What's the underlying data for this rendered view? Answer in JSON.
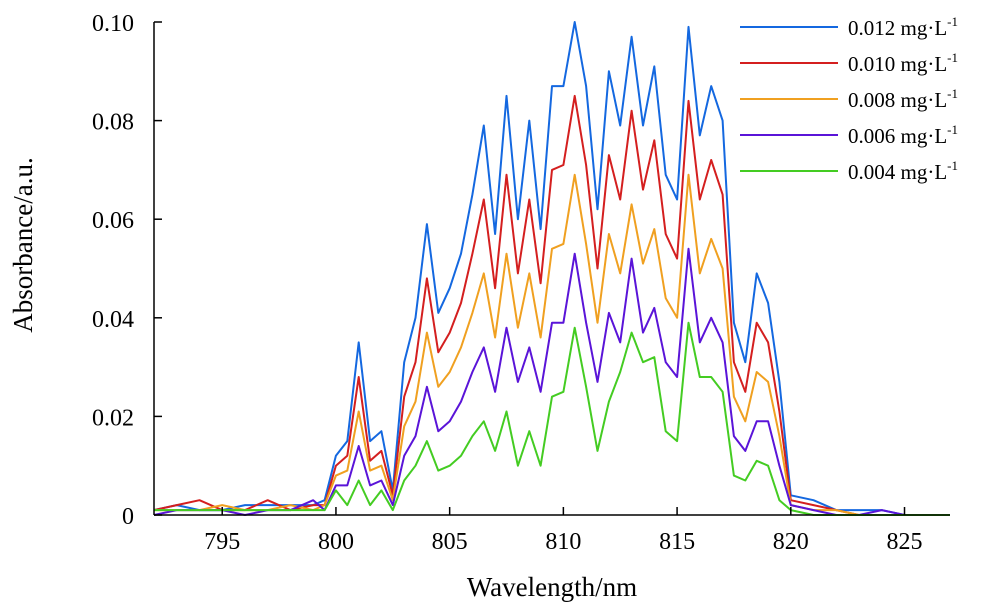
{
  "chart_data": {
    "type": "line",
    "xlabel": "Wavelength/nm",
    "ylabel": "Absorbance/a.u.",
    "xlim": [
      792,
      827
    ],
    "ylim": [
      0,
      0.1
    ],
    "xticks": [
      795,
      800,
      805,
      810,
      815,
      820,
      825
    ],
    "yticks": [
      0,
      0.02,
      0.04,
      0.06,
      0.08,
      0.1
    ],
    "ytick_labels": [
      "0",
      "0.02",
      "0.04",
      "0.06",
      "0.08",
      "0.10"
    ],
    "grid": false,
    "legend_position": "top-right",
    "x": [
      792,
      793,
      794,
      795,
      796,
      797,
      798,
      799,
      799.5,
      800,
      800.5,
      801,
      801.5,
      802,
      802.5,
      803,
      803.5,
      804,
      804.5,
      805,
      805.5,
      806,
      806.5,
      807,
      807.5,
      808,
      808.5,
      809,
      809.5,
      810,
      810.5,
      811,
      811.5,
      812,
      812.5,
      813,
      813.5,
      814,
      814.5,
      815,
      815.5,
      816,
      816.5,
      817,
      817.5,
      818,
      818.5,
      819,
      819.5,
      820,
      821,
      822,
      823,
      824,
      825,
      826,
      827
    ],
    "series": [
      {
        "name": "0.012 mg·L",
        "name_sup": "-1",
        "color": "#1468e0",
        "values": [
          0.001,
          0.002,
          0.001,
          0.001,
          0.002,
          0.002,
          0.002,
          0.002,
          0.003,
          0.012,
          0.015,
          0.035,
          0.015,
          0.017,
          0.005,
          0.031,
          0.04,
          0.059,
          0.041,
          0.046,
          0.053,
          0.065,
          0.079,
          0.057,
          0.085,
          0.06,
          0.08,
          0.058,
          0.087,
          0.087,
          0.1,
          0.087,
          0.062,
          0.09,
          0.079,
          0.097,
          0.079,
          0.091,
          0.069,
          0.064,
          0.099,
          0.077,
          0.087,
          0.08,
          0.039,
          0.031,
          0.049,
          0.043,
          0.027,
          0.004,
          0.003,
          0.001,
          0.001,
          0.001,
          0,
          0,
          0
        ]
      },
      {
        "name": "0.010 mg·L",
        "name_sup": "-1",
        "color": "#d41f1f",
        "values": [
          0.001,
          0.002,
          0.003,
          0.001,
          0.001,
          0.003,
          0.001,
          0.002,
          0.002,
          0.01,
          0.012,
          0.028,
          0.011,
          0.013,
          0.004,
          0.024,
          0.031,
          0.048,
          0.033,
          0.037,
          0.043,
          0.053,
          0.064,
          0.046,
          0.069,
          0.049,
          0.064,
          0.047,
          0.07,
          0.071,
          0.085,
          0.071,
          0.05,
          0.073,
          0.064,
          0.082,
          0.066,
          0.076,
          0.057,
          0.052,
          0.084,
          0.064,
          0.072,
          0.065,
          0.031,
          0.025,
          0.039,
          0.035,
          0.021,
          0.003,
          0.002,
          0.001,
          0,
          0,
          0,
          0,
          0
        ]
      },
      {
        "name": "0.008 mg·L",
        "name_sup": "-1",
        "color": "#f0a020",
        "values": [
          0.001,
          0.001,
          0.001,
          0.002,
          0.001,
          0.001,
          0.002,
          0.001,
          0.002,
          0.008,
          0.009,
          0.021,
          0.009,
          0.01,
          0.003,
          0.018,
          0.023,
          0.037,
          0.026,
          0.029,
          0.034,
          0.041,
          0.049,
          0.036,
          0.053,
          0.038,
          0.049,
          0.036,
          0.054,
          0.055,
          0.069,
          0.055,
          0.039,
          0.057,
          0.049,
          0.063,
          0.051,
          0.058,
          0.044,
          0.04,
          0.069,
          0.049,
          0.056,
          0.05,
          0.024,
          0.019,
          0.029,
          0.027,
          0.016,
          0.002,
          0.001,
          0.001,
          0,
          0,
          0,
          0,
          0
        ]
      },
      {
        "name": "0.006 mg·L",
        "name_sup": "-1",
        "color": "#5a14d8",
        "values": [
          0,
          0.001,
          0.001,
          0.001,
          0,
          0.001,
          0.001,
          0.003,
          0.001,
          0.006,
          0.006,
          0.014,
          0.006,
          0.007,
          0.002,
          0.012,
          0.016,
          0.026,
          0.017,
          0.019,
          0.023,
          0.029,
          0.034,
          0.025,
          0.038,
          0.027,
          0.034,
          0.025,
          0.039,
          0.039,
          0.053,
          0.039,
          0.027,
          0.041,
          0.035,
          0.052,
          0.037,
          0.042,
          0.031,
          0.028,
          0.054,
          0.035,
          0.04,
          0.035,
          0.016,
          0.013,
          0.019,
          0.019,
          0.01,
          0.002,
          0.001,
          0,
          0,
          0.001,
          0,
          0,
          0
        ]
      },
      {
        "name": "0.004 mg·L",
        "name_sup": "-1",
        "color": "#44cc22",
        "values": [
          0.001,
          0.001,
          0.001,
          0.001,
          0.001,
          0.001,
          0.001,
          0.001,
          0.001,
          0.005,
          0.002,
          0.007,
          0.002,
          0.005,
          0.001,
          0.007,
          0.01,
          0.015,
          0.009,
          0.01,
          0.012,
          0.016,
          0.019,
          0.013,
          0.021,
          0.01,
          0.017,
          0.01,
          0.024,
          0.025,
          0.038,
          0.026,
          0.013,
          0.023,
          0.029,
          0.037,
          0.031,
          0.032,
          0.017,
          0.015,
          0.039,
          0.028,
          0.028,
          0.025,
          0.008,
          0.007,
          0.011,
          0.01,
          0.003,
          0.001,
          0,
          0,
          0,
          0,
          0,
          0,
          0
        ]
      }
    ]
  }
}
